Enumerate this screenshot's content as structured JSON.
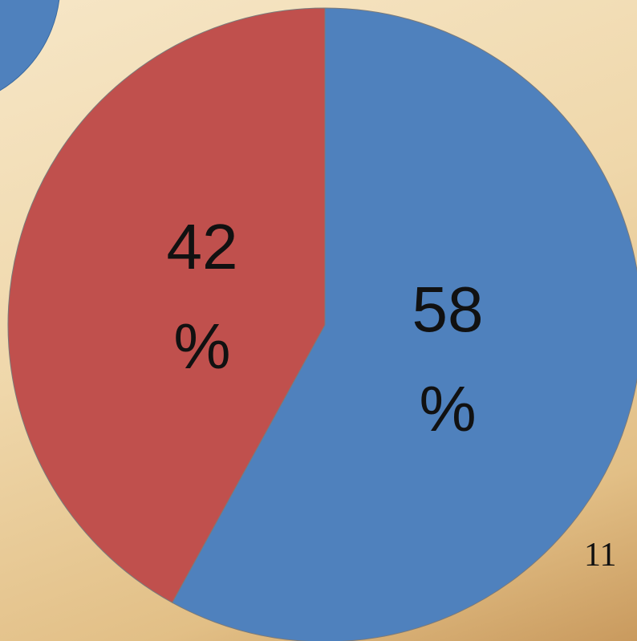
{
  "chart_data": {
    "type": "pie",
    "values": [
      58,
      42
    ],
    "value_labels": [
      "58 %",
      "42 %"
    ],
    "colors": [
      "#4f81bd",
      "#c0504d"
    ],
    "start_angle": 0,
    "direction": "clockwise"
  },
  "slide": {
    "page_number": "11"
  }
}
